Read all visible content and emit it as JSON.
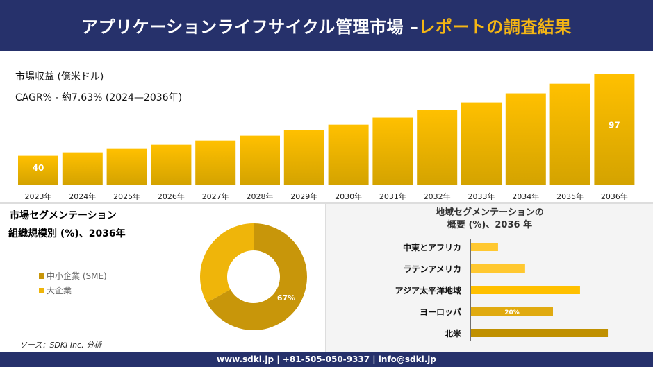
{
  "header": {
    "title_main": "アプリケーションライフサイクル管理市場 –",
    "title_highlight": "レポートの調査結果"
  },
  "revenue": {
    "label": "市場収益 (億米ドル)",
    "cagr": "CAGR% - 約7.63% (2024—2036年)"
  },
  "chart_data": [
    {
      "type": "bar",
      "categories": [
        "2023年",
        "2024年",
        "2025年",
        "2026年",
        "2027年",
        "2028年",
        "2029年",
        "2030年",
        "2031年",
        "2032年",
        "2033年",
        "2034年",
        "2035年",
        "2036年"
      ],
      "values": [
        40,
        42.4,
        44.8,
        47.7,
        50.6,
        54,
        57.9,
        61.7,
        66.6,
        71.9,
        77.2,
        83.5,
        90.2,
        97
      ],
      "data_labels": {
        "0": "40",
        "13": "97"
      },
      "ylim": [
        20,
        100
      ],
      "grid": false,
      "colors": [
        "#d4a300",
        "#ffc000"
      ]
    },
    {
      "type": "pie",
      "title": "市場セグメンテーション 組織規模別 (%)、2036年",
      "slices": [
        {
          "name": "中小企業 (SME)",
          "value": 67,
          "color": "#c8960a",
          "label": "67%"
        },
        {
          "name": "大企業",
          "value": 33,
          "color": "#efb50a"
        }
      ],
      "donut": true,
      "legend": "left"
    },
    {
      "type": "bar",
      "orientation": "horizontal",
      "title": "地域セグメンテーションの 概要 (%)、2036 年",
      "categories": [
        "中東とアフリカ",
        "ラテンアメリカ",
        "アジア太平洋地域",
        "ヨーロッパ",
        "北米"
      ],
      "values": [
        6.6,
        13.2,
        26.6,
        20,
        33.4
      ],
      "data_labels": {
        "3": "20%"
      },
      "colors": [
        "#ffc830",
        "#ffc830",
        "#ffc000",
        "#e0aa10",
        "#c09000"
      ]
    }
  ],
  "segment": {
    "title1": "市場セグメンテーション",
    "title2": "組織規模別 (%)、2036年"
  },
  "region": {
    "title1": "地域セグメンテーションの",
    "title2": "概要 (%)、2036 年"
  },
  "source": "ソース：SDKI Inc. 分析",
  "footer": "www.sdki.jp | +81-505-050-9337 | info@sdki.jp"
}
